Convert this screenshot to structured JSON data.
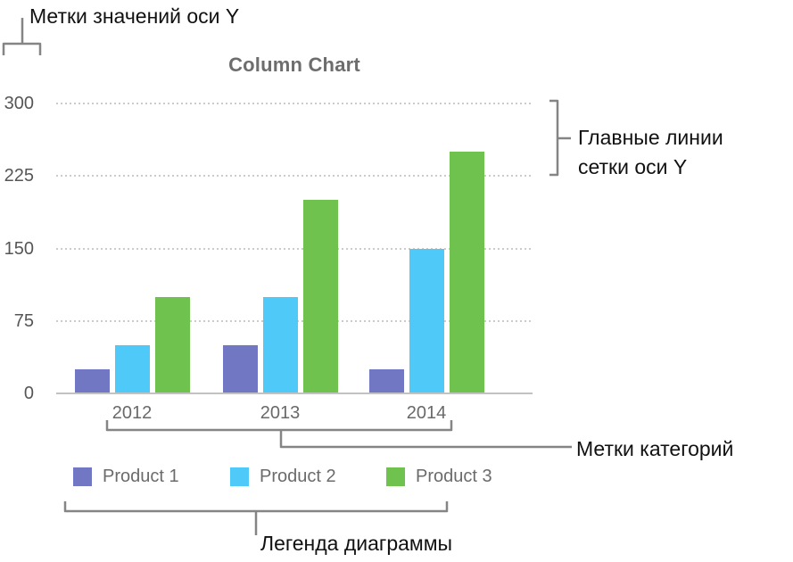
{
  "annotations": {
    "y_value_labels": "Метки значений оси Y",
    "y_gridlines": "Главные линии сетки оси Y",
    "category_labels": "Метки категорий",
    "legend": "Легенда диаграммы"
  },
  "chart_data": {
    "type": "bar",
    "title": "Column Chart",
    "categories": [
      "2012",
      "2013",
      "2014"
    ],
    "series": [
      {
        "name": "Product 1",
        "color": "#7277c4",
        "values": [
          25,
          50,
          25
        ]
      },
      {
        "name": "Product 2",
        "color": "#4fc9f8",
        "values": [
          50,
          100,
          150
        ]
      },
      {
        "name": "Product 3",
        "color": "#70c24e",
        "values": [
          100,
          200,
          250
        ]
      }
    ],
    "ylim": [
      0,
      300
    ],
    "yticks": [
      0,
      75,
      150,
      225,
      300
    ],
    "grid": "horizontal dotted major gridlines",
    "legend_position": "bottom",
    "xlabel": "",
    "ylabel": ""
  },
  "colors": {
    "annotation_text": "#111111",
    "bracket": "#858585",
    "title_text": "#6d6d6d",
    "axis_tick_text": "#565656",
    "category_text": "#696969",
    "legend_text": "#6b6b6b",
    "gridline": "#cbcbcb",
    "axis_line": "#c2c2c2"
  }
}
